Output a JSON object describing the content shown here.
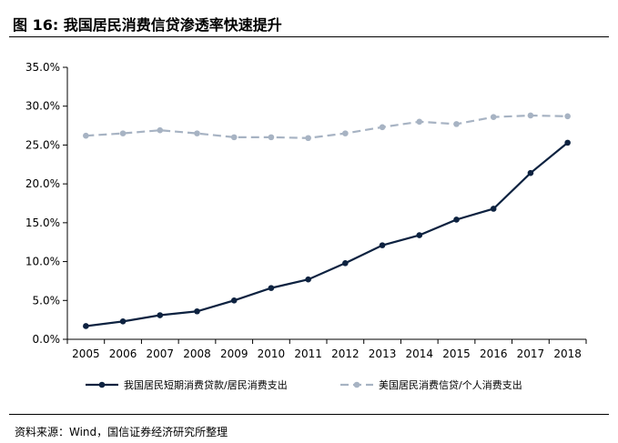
{
  "figure": {
    "title": "图 16:  我国居民消费信贷渗透率快速提升",
    "source": "资料来源：Wind，国信证券经济研究所整理"
  },
  "chart_data": {
    "type": "line",
    "title": "",
    "xlabel": "",
    "ylabel": "",
    "x": [
      "2005",
      "2006",
      "2007",
      "2008",
      "2009",
      "2010",
      "2011",
      "2012",
      "2013",
      "2014",
      "2015",
      "2016",
      "2017",
      "2018"
    ],
    "ylim": [
      0,
      35
    ],
    "ytick_step": 5,
    "ytick_labels": [
      "0.0%",
      "5.0%",
      "10.0%",
      "15.0%",
      "20.0%",
      "25.0%",
      "30.0%",
      "35.0%"
    ],
    "grid": false,
    "legend_position": "bottom",
    "series": [
      {
        "name": "我国居民短期消费贷款/居民消费支出",
        "color": "#0d2240",
        "style": "solid",
        "values": [
          1.7,
          2.3,
          3.1,
          3.6,
          5.0,
          6.6,
          7.7,
          9.8,
          12.1,
          13.4,
          15.4,
          16.8,
          21.4,
          25.3
        ]
      },
      {
        "name": "美国居民消费信贷/个人消费支出",
        "color": "#a7b3c3",
        "style": "dashed",
        "values": [
          26.2,
          26.5,
          26.9,
          26.5,
          26.0,
          26.0,
          25.9,
          26.5,
          27.3,
          28.0,
          27.7,
          28.6,
          28.8,
          28.7
        ]
      }
    ]
  }
}
